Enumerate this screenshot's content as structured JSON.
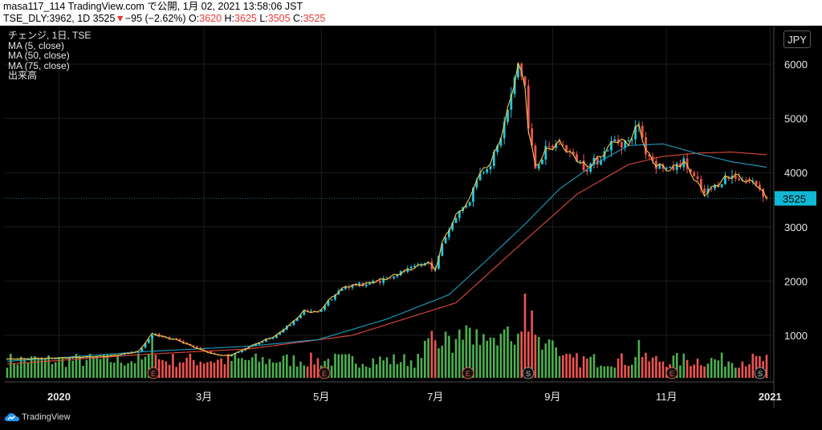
{
  "header": {
    "line1": "masa117_114 TradingView.com で公開, 1月 02, 2021 13:58:06 JST",
    "symbol_prefix": "TSE_DLY:3962, 1D 3525",
    "change_arrow": "▼",
    "change_text": "−95 (−2.62%)",
    "o_label": " O:",
    "o_value": "3620",
    "h_label": " H:",
    "h_value": "3625",
    "l_label": " L:",
    "l_value": "3505",
    "c_label": " C:",
    "c_value": "3525"
  },
  "legend": {
    "title": "チェンジ, 1日, TSE",
    "ma5": "MA (5, close)",
    "ma50": "MA (50, close)",
    "ma75": "MA (75, close)",
    "volume": "出来高"
  },
  "currency_button": "JPY",
  "price_tag": "3525",
  "brand": "TradingView",
  "colors": {
    "up": "#26c6da",
    "down": "#ef5350",
    "vol_up": "#4caf50",
    "vol_down": "#ef5350",
    "ma5": "#f9c846",
    "ma50": "#1e9fc4",
    "ma75": "#e0493a",
    "grid": "#1c1c1c",
    "axis_text": "#e6e6e6"
  },
  "chart_data": {
    "type": "candlestick",
    "symbol": "TSE_DLY:3962",
    "interval": "1D",
    "y_ticks": [
      1000,
      2000,
      3000,
      4000,
      5000,
      6000
    ],
    "x_tick_labels": [
      "2020",
      "3月",
      "5月",
      "7月",
      "9月",
      "11月",
      "2021"
    ],
    "last_price": 3525,
    "series": [
      {
        "name": "MA (5, close)"
      },
      {
        "name": "MA (50, close)"
      },
      {
        "name": "MA (75, close)"
      },
      {
        "name": "出来高"
      }
    ],
    "event_markers": [
      {
        "label": "E",
        "near": "3月"
      },
      {
        "label": "E",
        "near": "5月"
      },
      {
        "label": "E",
        "near": "8月"
      },
      {
        "label": "S",
        "near": "9月"
      },
      {
        "label": "E",
        "near": "11月"
      },
      {
        "label": "S",
        "near": "2021"
      }
    ],
    "price_path": [
      [
        0,
        560
      ],
      [
        15,
        580
      ],
      [
        30,
        620
      ],
      [
        38,
        700
      ],
      [
        42,
        1030
      ],
      [
        46,
        960
      ],
      [
        50,
        900
      ],
      [
        55,
        760
      ],
      [
        60,
        650
      ],
      [
        64,
        620
      ],
      [
        68,
        720
      ],
      [
        72,
        840
      ],
      [
        78,
        1000
      ],
      [
        82,
        1200
      ],
      [
        86,
        1450
      ],
      [
        90,
        1420
      ],
      [
        94,
        1700
      ],
      [
        98,
        1900
      ],
      [
        104,
        1950
      ],
      [
        110,
        2050
      ],
      [
        114,
        2150
      ],
      [
        118,
        2250
      ],
      [
        122,
        2350
      ],
      [
        124,
        2200
      ],
      [
        126,
        2700
      ],
      [
        130,
        3200
      ],
      [
        134,
        3500
      ],
      [
        136,
        3900
      ],
      [
        140,
        4200
      ],
      [
        142,
        4450
      ],
      [
        144,
        4900
      ],
      [
        146,
        5400
      ],
      [
        148,
        6000
      ],
      [
        150,
        5600
      ],
      [
        151,
        4800
      ],
      [
        153,
        4100
      ],
      [
        156,
        4400
      ],
      [
        160,
        4550
      ],
      [
        164,
        4300
      ],
      [
        168,
        4100
      ],
      [
        172,
        4300
      ],
      [
        176,
        4600
      ],
      [
        180,
        4550
      ],
      [
        183,
        4900
      ],
      [
        185,
        4400
      ],
      [
        188,
        4150
      ],
      [
        192,
        4050
      ],
      [
        196,
        4200
      ],
      [
        200,
        3800
      ],
      [
        202,
        3600
      ],
      [
        205,
        3750
      ],
      [
        208,
        3900
      ],
      [
        211,
        3950
      ],
      [
        214,
        3850
      ],
      [
        217,
        3800
      ],
      [
        219,
        3620
      ],
      [
        220,
        3525
      ]
    ],
    "ma50_path": [
      [
        0,
        520
      ],
      [
        40,
        700
      ],
      [
        70,
        800
      ],
      [
        90,
        920
      ],
      [
        110,
        1300
      ],
      [
        128,
        1750
      ],
      [
        140,
        2450
      ],
      [
        150,
        3050
      ],
      [
        160,
        3700
      ],
      [
        170,
        4150
      ],
      [
        180,
        4500
      ],
      [
        190,
        4530
      ],
      [
        200,
        4350
      ],
      [
        210,
        4200
      ],
      [
        220,
        4100
      ]
    ],
    "ma75_path": [
      [
        0,
        470
      ],
      [
        40,
        650
      ],
      [
        70,
        750
      ],
      [
        100,
        1000
      ],
      [
        130,
        1600
      ],
      [
        150,
        2750
      ],
      [
        165,
        3600
      ],
      [
        180,
        4150
      ],
      [
        190,
        4300
      ],
      [
        200,
        4360
      ],
      [
        210,
        4380
      ],
      [
        220,
        4330
      ]
    ],
    "volume_peaks": [
      {
        "near_index": 42,
        "level": 0.5
      },
      {
        "near_index": 140,
        "level": 0.48
      },
      {
        "near_index": 150,
        "level": 1.0
      },
      {
        "near_index": 152,
        "level": 0.8
      },
      {
        "near_index": 183,
        "level": 0.45
      }
    ]
  }
}
